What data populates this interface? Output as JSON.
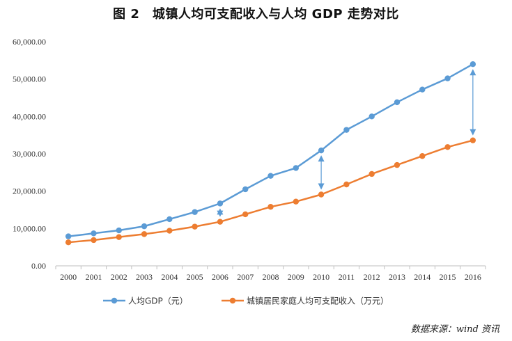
{
  "title": "图 2　城镇人均可支配收入与人均 GDP 走势对比",
  "source": "数据来源：wind 资讯",
  "colors": {
    "gdp": "#5b9bd5",
    "income": "#ed7d31",
    "axis": "#bfbfbf",
    "grid": "#d9d9d9"
  },
  "chart_data": {
    "type": "line",
    "categories": [
      "2000",
      "2001",
      "2002",
      "2003",
      "2004",
      "2005",
      "2006",
      "2007",
      "2008",
      "2009",
      "2010",
      "2011",
      "2012",
      "2013",
      "2014",
      "2015",
      "2016"
    ],
    "ylim": [
      0,
      60000
    ],
    "yticks": [
      0,
      10000,
      20000,
      30000,
      40000,
      50000,
      60000
    ],
    "ytick_labels": [
      "0.00",
      "10,000.00",
      "20,000.00",
      "30,000.00",
      "40,000.00",
      "50,000.00",
      "60,000.00"
    ],
    "grid": false,
    "legend_position": "bottom",
    "series": [
      {
        "name": "人均GDP（元）",
        "color": "#5b9bd5",
        "values": [
          7900,
          8700,
          9500,
          10600,
          12500,
          14400,
          16700,
          20500,
          24100,
          26200,
          30900,
          36400,
          40000,
          43800,
          47200,
          50200,
          54000
        ]
      },
      {
        "name": "城镇居民家庭人均可支配收入（万元）",
        "color": "#ed7d31",
        "values": [
          6300,
          6900,
          7700,
          8500,
          9400,
          10500,
          11800,
          13800,
          15800,
          17200,
          19100,
          21800,
          24600,
          27000,
          29400,
          31800,
          33600
        ]
      }
    ],
    "annotations": [
      {
        "type": "double-arrow",
        "x": "2006"
      },
      {
        "type": "double-arrow",
        "x": "2010"
      },
      {
        "type": "double-arrow",
        "x": "2016"
      }
    ]
  }
}
